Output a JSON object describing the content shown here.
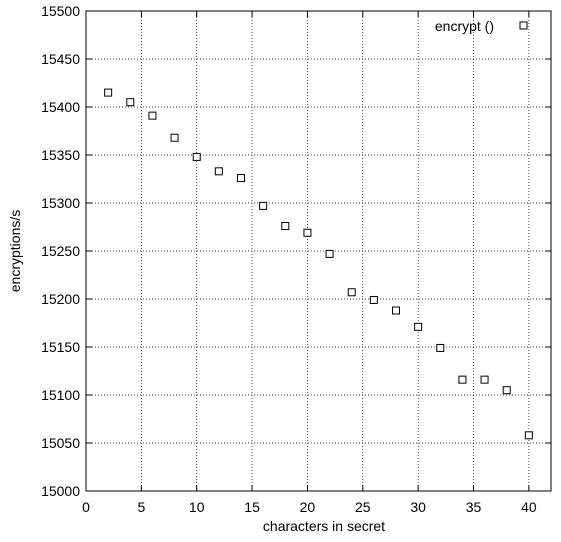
{
  "chart_data": {
    "type": "scatter",
    "xlabel": "characters in secret",
    "ylabel": "encryptions/s",
    "xlim": [
      0,
      42
    ],
    "ylim": [
      15000,
      15500
    ],
    "x_ticks": [
      0,
      5,
      10,
      15,
      20,
      25,
      30,
      35,
      40
    ],
    "y_ticks": [
      15000,
      15050,
      15100,
      15150,
      15200,
      15250,
      15300,
      15350,
      15400,
      15450,
      15500
    ],
    "grid": true,
    "legend_position": "top-right",
    "marker": "open-square",
    "series": [
      {
        "name": "encrypt ()",
        "x": [
          2,
          4,
          6,
          8,
          10,
          12,
          14,
          16,
          18,
          20,
          22,
          24,
          26,
          28,
          30,
          32,
          34,
          36,
          38,
          40
        ],
        "y": [
          15415,
          15405,
          15391,
          15368,
          15348,
          15333,
          15326,
          15297,
          15276,
          15269,
          15247,
          15207,
          15199,
          15188,
          15171,
          15149,
          15116,
          15116,
          15105,
          15058
        ]
      }
    ]
  }
}
